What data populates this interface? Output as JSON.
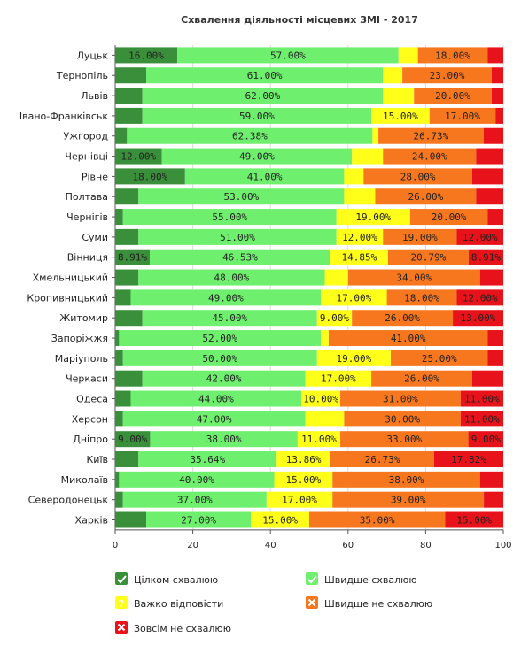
{
  "chart_data": {
    "type": "bar",
    "orientation": "horizontal",
    "stacked": true,
    "title": "Схвалення діяльності місцевих ЗМІ - 2017",
    "xlim": [
      0,
      100
    ],
    "x_ticks": [
      "0",
      "20",
      "40",
      "60",
      "80",
      "100"
    ],
    "grid": true,
    "legend_position": "bottom",
    "categories": [
      "Луцьк",
      "Тернопіль",
      "Львів",
      "Івано-Франківськ",
      "Ужгород",
      "Чернівці",
      "Рівне",
      "Полтава",
      "Чернігів",
      "Суми",
      "Вінниця",
      "Хмельницький",
      "Кропивницький",
      "Житомир",
      "Запоріжжя",
      "Маріуполь",
      "Черкаси",
      "Одеса",
      "Херсон",
      "Дніпро",
      "Київ",
      "Миколаїв",
      "Северодонецьк",
      "Харків"
    ],
    "series": [
      {
        "name": "Цілком схвалюю",
        "color": "#3a8f3a",
        "icon": "check-icon",
        "values": [
          16,
          8,
          7,
          7,
          3,
          12,
          18,
          6,
          2,
          6,
          8.91,
          6,
          4,
          7,
          1,
          2,
          7,
          4,
          2,
          9,
          6,
          1,
          2,
          8
        ]
      },
      {
        "name": "Швидше схвалюю",
        "color": "#6ef06e",
        "icon": "check-icon",
        "values": [
          57,
          61,
          62,
          59,
          62.38,
          49,
          41,
          53,
          55,
          51,
          46.53,
          48,
          49,
          45,
          52,
          50,
          42,
          44,
          47,
          38,
          35.64,
          40,
          37,
          27
        ]
      },
      {
        "name": "Важко відповісти",
        "color": "#ffff1a",
        "icon": "question-icon",
        "values": [
          5,
          5,
          8,
          15,
          1.5,
          8,
          5,
          8,
          19,
          12,
          14.85,
          6,
          17,
          9,
          2,
          19,
          17,
          10,
          10,
          11,
          13.86,
          15,
          17,
          15
        ]
      },
      {
        "name": "Швидше не схвалюю",
        "color": "#f7771f",
        "icon": "cross-icon",
        "values": [
          18,
          23,
          20,
          17,
          26.73,
          24,
          28,
          26,
          20,
          19,
          20.79,
          34,
          18,
          26,
          41,
          25,
          26,
          31,
          30,
          33,
          26.73,
          38,
          39,
          35
        ]
      },
      {
        "name": "Зовсім не схвалюю",
        "color": "#e8121a",
        "icon": "cross-icon",
        "values": [
          4,
          3,
          3,
          2,
          5,
          7,
          8,
          7,
          4,
          12,
          8.91,
          6,
          12,
          13,
          4,
          4,
          8,
          11,
          11,
          9,
          17.82,
          6,
          5,
          15
        ]
      }
    ],
    "data_labels": [
      [
        "16.00%",
        "57.00%",
        "",
        "18.00%",
        ""
      ],
      [
        "",
        "61.00%",
        "",
        "23.00%",
        ""
      ],
      [
        "",
        "62.00%",
        "",
        "20.00%",
        ""
      ],
      [
        "",
        "59.00%",
        "15.00%",
        "17.00%",
        ""
      ],
      [
        "",
        "62.38%",
        "",
        "26.73%",
        ""
      ],
      [
        "12.00%",
        "49.00%",
        "",
        "24.00%",
        ""
      ],
      [
        "18.00%",
        "41.00%",
        "",
        "28.00%",
        ""
      ],
      [
        "",
        "53.00%",
        "",
        "26.00%",
        ""
      ],
      [
        "",
        "55.00%",
        "19.00%",
        "20.00%",
        ""
      ],
      [
        "",
        "51.00%",
        "12.00%",
        "19.00%",
        "12.00%"
      ],
      [
        "8.91%",
        "46.53%",
        "14.85%",
        "20.79%",
        "8.91%"
      ],
      [
        "",
        "48.00%",
        "",
        "34.00%",
        ""
      ],
      [
        "",
        "49.00%",
        "17.00%",
        "18.00%",
        "12.00%"
      ],
      [
        "",
        "45.00%",
        "9.00%",
        "26.00%",
        "13.00%"
      ],
      [
        "",
        "52.00%",
        "",
        "41.00%",
        ""
      ],
      [
        "",
        "50.00%",
        "19.00%",
        "25.00%",
        ""
      ],
      [
        "",
        "42.00%",
        "17.00%",
        "26.00%",
        ""
      ],
      [
        "",
        "44.00%",
        "10.00%",
        "31.00%",
        "11.00%"
      ],
      [
        "",
        "47.00%",
        "",
        "30.00%",
        "11.00%"
      ],
      [
        "9.00%",
        "38.00%",
        "11.00%",
        "33.00%",
        "9.00%"
      ],
      [
        "",
        "35.64%",
        "13.86%",
        "26.73%",
        "17.82%"
      ],
      [
        "",
        "40.00%",
        "15.00%",
        "38.00%",
        ""
      ],
      [
        "",
        "37.00%",
        "17.00%",
        "39.00%",
        ""
      ],
      [
        "",
        "27.00%",
        "15.00%",
        "35.00%",
        "15.00%"
      ]
    ]
  }
}
